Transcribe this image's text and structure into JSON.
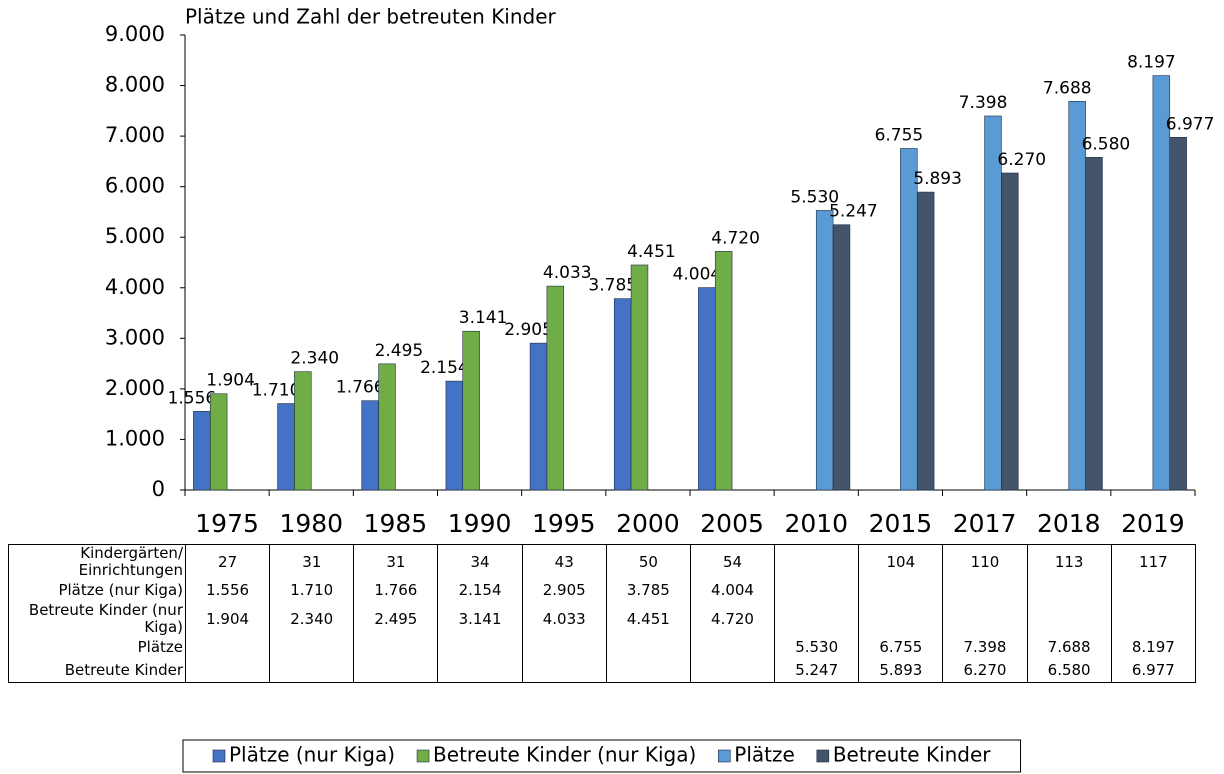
{
  "chart_data": {
    "type": "bar",
    "title": "Plätze und Zahl der betreuten Kinder",
    "categories": [
      "1975",
      "1980",
      "1985",
      "1990",
      "1995",
      "2000",
      "2005",
      "2010",
      "2015",
      "2017",
      "2018",
      "2019"
    ],
    "series": [
      {
        "name": "Plätze (nur Kiga)",
        "color": "#4472c4",
        "values": [
          1556,
          1710,
          1766,
          2154,
          2905,
          3785,
          4004,
          null,
          null,
          null,
          null,
          null
        ],
        "value_labels": [
          "1.556",
          "1.710",
          "1.766",
          "2.154",
          "2.905",
          "3.785",
          "4.004",
          null,
          null,
          null,
          null,
          null
        ]
      },
      {
        "name": "Betreute Kinder (nur Kiga)",
        "color": "#70ad47",
        "values": [
          1904,
          2340,
          2495,
          3141,
          4033,
          4451,
          4720,
          null,
          null,
          null,
          null,
          null
        ],
        "value_labels": [
          "1.904",
          "2.340",
          "2.495",
          "3.141",
          "4.033",
          "4.451",
          "4.720",
          null,
          null,
          null,
          null,
          null
        ]
      },
      {
        "name": "Plätze",
        "color": "#5b9bd5",
        "values": [
          null,
          null,
          null,
          null,
          null,
          null,
          null,
          5530,
          6755,
          7398,
          7688,
          8197
        ],
        "value_labels": [
          null,
          null,
          null,
          null,
          null,
          null,
          null,
          "5.530",
          "6.755",
          "7.398",
          "7.688",
          "8.197"
        ]
      },
      {
        "name": "Betreute Kinder",
        "color": "#44546a",
        "values": [
          null,
          null,
          null,
          null,
          null,
          null,
          null,
          5247,
          5893,
          6270,
          6580,
          6977
        ],
        "value_labels": [
          null,
          null,
          null,
          null,
          null,
          null,
          null,
          "5.247",
          "5.893",
          "6.270",
          "6.580",
          "6.977"
        ]
      }
    ],
    "ylim": [
      0,
      9000
    ],
    "yticks": [
      0,
      {
        "value": 1000,
        "label": "1.000"
      },
      {
        "value": 2000,
        "label": "2.000"
      },
      {
        "value": 3000,
        "label": "3.000"
      },
      {
        "value": 4000,
        "label": "4.000"
      },
      {
        "value": 5000,
        "label": "5.000"
      },
      {
        "value": 6000,
        "label": "6.000"
      },
      {
        "value": 7000,
        "label": "7.000"
      },
      {
        "value": 8000,
        "label": "8.000"
      },
      {
        "value": 9000,
        "label": "9.000"
      }
    ],
    "legend": "bottom"
  },
  "table": {
    "rows": [
      {
        "label": "Kindergärten/ Einrichtungen",
        "values": [
          27,
          31,
          31,
          34,
          43,
          50,
          54,
          null,
          104,
          110,
          113,
          117
        ]
      }
    ]
  }
}
